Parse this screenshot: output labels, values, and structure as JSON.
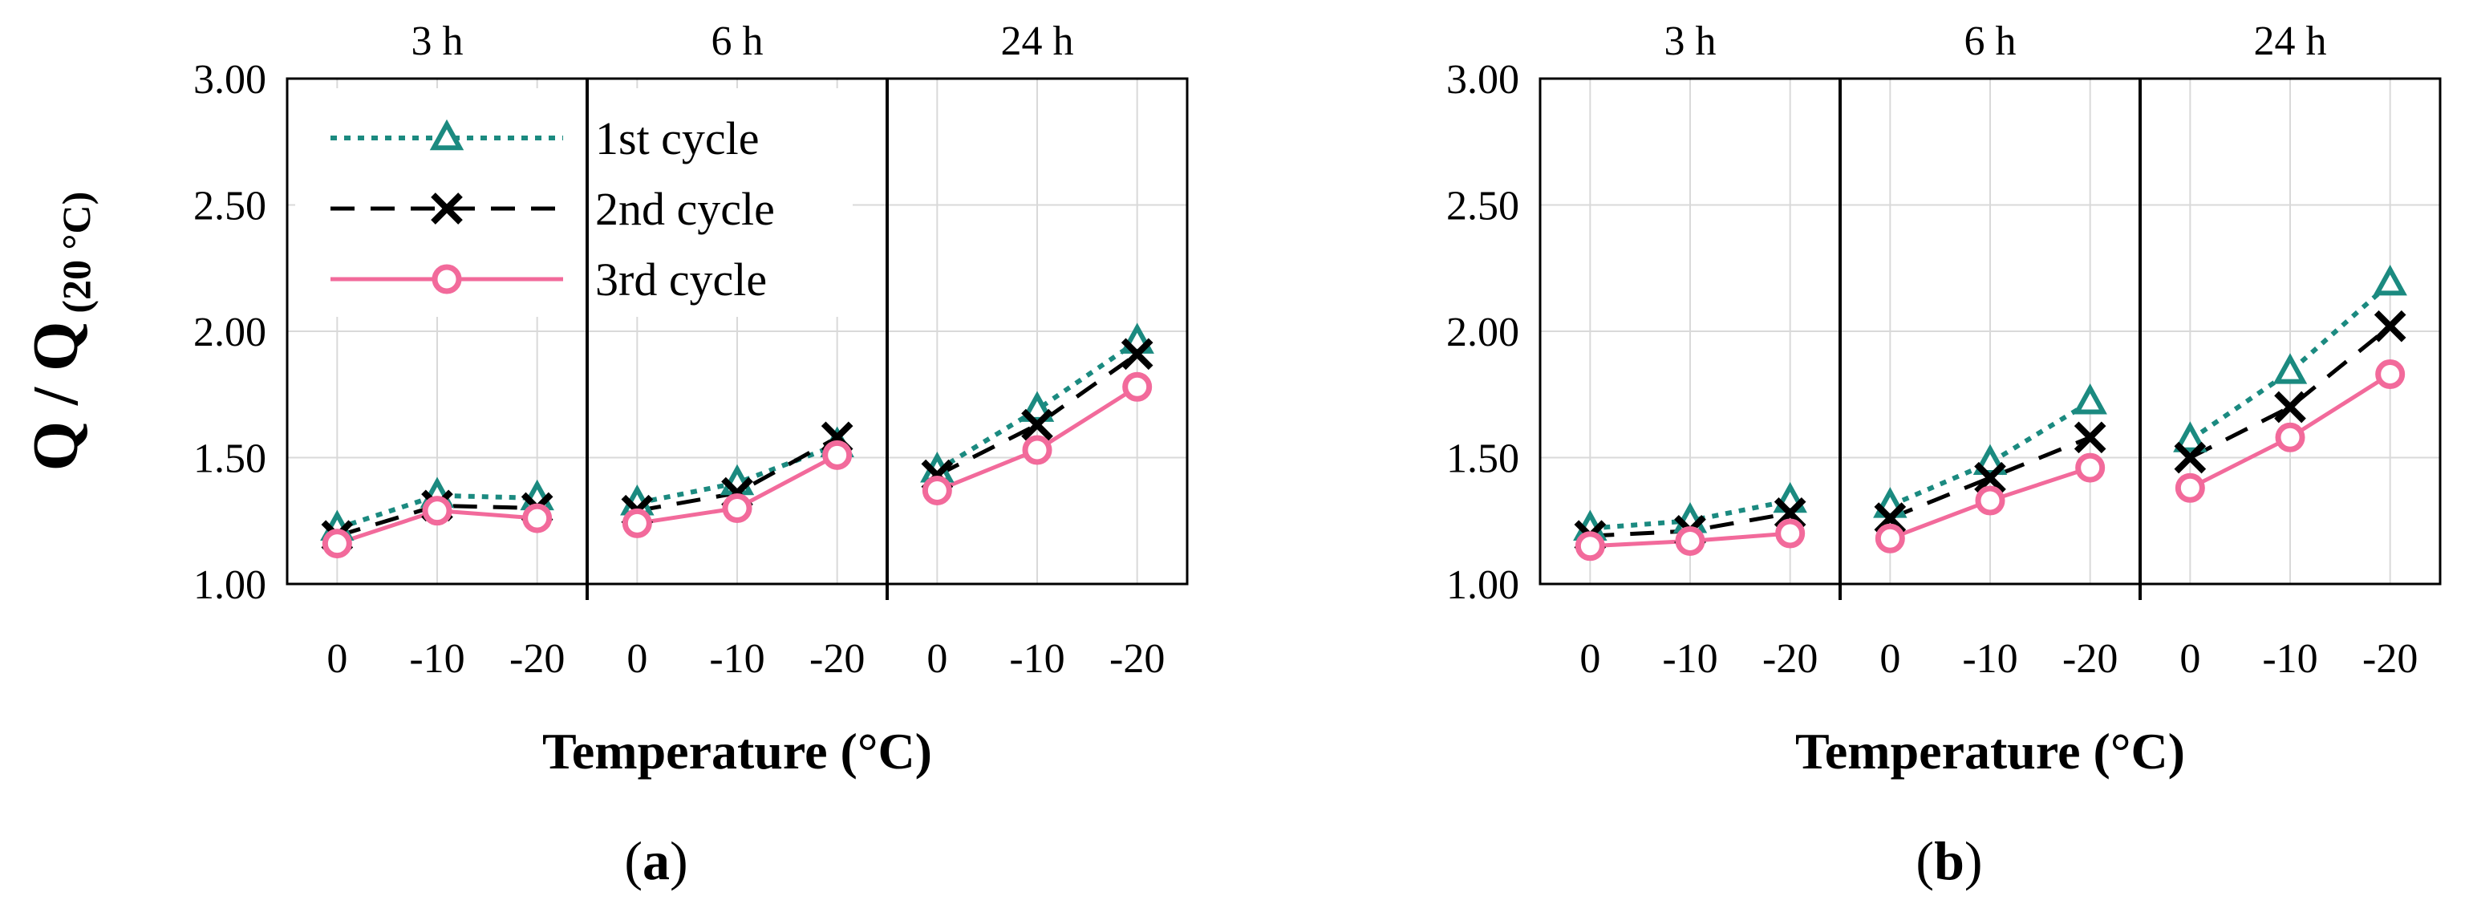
{
  "chart_data": [
    {
      "type": "line",
      "panel_label": "a",
      "title": "",
      "groups": [
        "3 h",
        "6 h",
        "24 h"
      ],
      "categories": [
        "0",
        "-10",
        "-20"
      ],
      "xlabel": "Temperature (°C)",
      "ylabel": "Q / Q",
      "ylabel_sub": "(20 °C)",
      "ylim": [
        1.0,
        3.0
      ],
      "yticks": [
        "1.00",
        "1.50",
        "2.00",
        "2.50",
        "3.00"
      ],
      "grid": true,
      "legend_position": "top-left",
      "series": [
        {
          "name": "1st cycle",
          "marker": "triangle",
          "style": "dotted",
          "color": "#1b8a80",
          "values": [
            [
              1.22,
              1.35,
              1.34
            ],
            [
              1.32,
              1.4,
              1.55
            ],
            [
              1.45,
              1.69,
              1.96
            ]
          ]
        },
        {
          "name": "2nd cycle",
          "marker": "x",
          "style": "dashed",
          "color": "#000000",
          "values": [
            [
              1.19,
              1.31,
              1.3
            ],
            [
              1.29,
              1.36,
              1.58
            ],
            [
              1.43,
              1.63,
              1.91
            ]
          ]
        },
        {
          "name": "3rd cycle",
          "marker": "circle",
          "style": "solid",
          "color": "#f26a9b",
          "values": [
            [
              1.16,
              1.29,
              1.26
            ],
            [
              1.24,
              1.3,
              1.51
            ],
            [
              1.37,
              1.53,
              1.78
            ]
          ]
        }
      ]
    },
    {
      "type": "line",
      "panel_label": "b",
      "title": "",
      "groups": [
        "3 h",
        "6 h",
        "24 h"
      ],
      "categories": [
        "0",
        "-10",
        "-20"
      ],
      "xlabel": "Temperature (°C)",
      "ylabel": "",
      "ylim": [
        1.0,
        3.0
      ],
      "yticks": [
        "1.00",
        "1.50",
        "2.00",
        "2.50",
        "3.00"
      ],
      "grid": true,
      "series": [
        {
          "name": "1st cycle",
          "marker": "triangle",
          "style": "dotted",
          "color": "#1b8a80",
          "values": [
            [
              1.22,
              1.25,
              1.33
            ],
            [
              1.31,
              1.48,
              1.72
            ],
            [
              1.57,
              1.84,
              2.19
            ]
          ]
        },
        {
          "name": "2nd cycle",
          "marker": "x",
          "style": "dashed",
          "color": "#000000",
          "values": [
            [
              1.19,
              1.21,
              1.28
            ],
            [
              1.26,
              1.42,
              1.58
            ],
            [
              1.5,
              1.7,
              2.02
            ]
          ]
        },
        {
          "name": "3rd cycle",
          "marker": "circle",
          "style": "solid",
          "color": "#f26a9b",
          "values": [
            [
              1.15,
              1.17,
              1.2
            ],
            [
              1.18,
              1.33,
              1.46
            ],
            [
              1.38,
              1.58,
              1.83
            ]
          ]
        }
      ]
    }
  ]
}
